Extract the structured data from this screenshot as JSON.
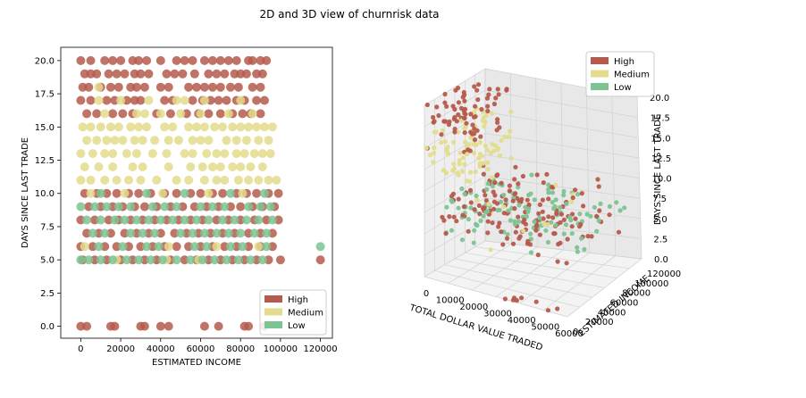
{
  "figure": {
    "suptitle": "2D and 3D view of churnrisk data"
  },
  "colors": {
    "High": "#b55a4c",
    "Medium": "#e3dc8c",
    "Low": "#7cc493"
  },
  "chart_data": [
    {
      "type": "scatter",
      "title": "",
      "xlabel": "ESTIMATED INCOME",
      "ylabel": "DAYS SINCE LAST TRADE",
      "xlim": [
        -10000,
        126000
      ],
      "ylim": [
        -0.9,
        21
      ],
      "xticks": [
        0,
        20000,
        40000,
        60000,
        80000,
        100000,
        120000
      ],
      "xtick_labels": [
        "0",
        "20000",
        "40000",
        "60000",
        "80000",
        "100000",
        "120000"
      ],
      "yticks": [
        0,
        2.5,
        5,
        7.5,
        10,
        12.5,
        15,
        17.5,
        20
      ],
      "ytick_labels": [
        "0.0",
        "2.5",
        "5.0",
        "7.5",
        "10.0",
        "12.5",
        "15.0",
        "17.5",
        "20.0"
      ],
      "grid": false,
      "legend": {
        "position": "bottom-right",
        "entries": [
          "High",
          "Medium",
          "Low"
        ]
      },
      "series": [
        {
          "name": "High",
          "rows": [
            {
              "y": 20,
              "x": [
                0,
                5000,
                12000,
                16000,
                20000,
                26000,
                29000,
                33000,
                40000,
                48000,
                52000,
                56000,
                62000,
                66000,
                70000,
                74000,
                78000,
                84000,
                86000,
                90000,
                93000
              ]
            },
            {
              "y": 19,
              "x": [
                2000,
                5000,
                8000,
                14000,
                18000,
                22000,
                27000,
                30000,
                34000,
                43000,
                47000,
                51000,
                57000,
                64000,
                68000,
                72000,
                77000,
                80000,
                83000,
                88000,
                91000
              ]
            },
            {
              "y": 18,
              "x": [
                1000,
                4000,
                10000,
                15000,
                19000,
                25000,
                28000,
                32000,
                40000,
                44000,
                54000,
                58000,
                62000,
                66000,
                70000,
                75000,
                79000,
                86000,
                90000
              ]
            },
            {
              "y": 17,
              "x": [
                0,
                5000,
                13000,
                17000,
                23000,
                27000,
                30000,
                42000,
                46000,
                56000,
                61000,
                65000,
                69000,
                73000,
                78000,
                82000,
                88000,
                92000
              ]
            },
            {
              "y": 16,
              "x": [
                3000,
                8000,
                16000,
                21000,
                26000,
                38000,
                45000,
                53000,
                59000,
                64000,
                70000,
                76000,
                81000,
                85000,
                90000
              ]
            },
            {
              "y": 10,
              "x": [
                2000,
                8000,
                13000,
                18000,
                24000,
                29000,
                35000,
                42000,
                48000,
                55000,
                60000,
                66000,
                71000,
                78000,
                83000,
                88000,
                94000,
                99000
              ]
            },
            {
              "y": 9,
              "x": [
                4000,
                10000,
                16000,
                21000,
                27000,
                32000,
                38000,
                45000,
                51000,
                57000,
                63000,
                69000,
                75000,
                80000,
                86000,
                91000,
                97000
              ]
            },
            {
              "y": 8,
              "x": [
                0,
                7000,
                14000,
                19000,
                25000,
                31000,
                37000,
                43000,
                49000,
                55000,
                61000,
                68000,
                74000,
                80000,
                87000,
                93000,
                99000
              ]
            },
            {
              "y": 7,
              "x": [
                3000,
                9000,
                15000,
                22000,
                28000,
                34000,
                40000,
                47000,
                53000,
                59000,
                65000,
                71000,
                77000,
                84000,
                90000,
                96000
              ]
            },
            {
              "y": 6,
              "x": [
                0,
                6000,
                12000,
                18000,
                24000,
                30000,
                36000,
                42000,
                48000,
                54000,
                60000,
                66000,
                72000,
                78000,
                84000,
                90000,
                96000
              ]
            },
            {
              "y": 5,
              "x": [
                1000,
                7000,
                13000,
                20000,
                26000,
                32000,
                38000,
                45000,
                52000,
                58000,
                64000,
                70000,
                76000,
                82000,
                88000,
                94000,
                100000,
                120000
              ]
            },
            {
              "y": 0,
              "x": [
                0,
                3000,
                15000,
                17000,
                30000,
                32000,
                40000,
                44000,
                62000,
                69000,
                82000,
                84000,
                92000
              ]
            }
          ]
        },
        {
          "name": "Medium",
          "rows": [
            {
              "y": 18,
              "x": [
                9000
              ]
            },
            {
              "y": 17,
              "x": [
                9000,
                20000,
                34000,
                48000,
                52000,
                62000,
                80000
              ]
            },
            {
              "y": 16,
              "x": [
                12000,
                28000,
                32000,
                40000,
                50000,
                60000,
                74000,
                86000
              ]
            },
            {
              "y": 15,
              "x": [
                1000,
                5000,
                10000,
                15000,
                19000,
                25000,
                29000,
                33000,
                42000,
                46000,
                54000,
                58000,
                62000,
                67000,
                71000,
                76000,
                80000,
                84000,
                88000,
                92000,
                96000
              ]
            },
            {
              "y": 14,
              "x": [
                3000,
                8000,
                13000,
                17000,
                21000,
                27000,
                31000,
                37000,
                44000,
                49000,
                56000,
                60000,
                64000,
                73000,
                78000,
                83000,
                89000,
                94000
              ]
            },
            {
              "y": 13,
              "x": [
                0,
                6000,
                12000,
                16000,
                23000,
                28000,
                36000,
                43000,
                52000,
                56000,
                63000,
                68000,
                72000,
                78000,
                82000,
                87000,
                91000,
                95000
              ]
            },
            {
              "y": 12,
              "x": [
                2000,
                9000,
                16000,
                26000,
                31000,
                44000,
                55000,
                61000,
                66000,
                70000,
                76000,
                80000,
                85000,
                91000
              ]
            },
            {
              "y": 11,
              "x": [
                0,
                5000,
                12000,
                18000,
                24000,
                30000,
                38000,
                48000,
                54000,
                62000,
                68000,
                72000,
                79000,
                84000,
                89000,
                94000,
                98000
              ]
            },
            {
              "y": 10,
              "x": [
                5000,
                22000,
                41000,
                64000,
                81000
              ]
            },
            {
              "y": 6,
              "x": [
                2000,
                44000,
                68000,
                89000
              ]
            },
            {
              "y": 5,
              "x": [
                18000,
                43000,
                59000
              ]
            }
          ]
        },
        {
          "name": "Low",
          "rows": [
            {
              "y": 10,
              "x": [
                10000,
                33000,
                52000,
                75000,
                92000
              ]
            },
            {
              "y": 9,
              "x": [
                0,
                7000,
                13000,
                19000,
                25000,
                36000,
                42000,
                48000,
                60000,
                66000,
                72000,
                84000,
                90000,
                95000
              ]
            },
            {
              "y": 8,
              "x": [
                3000,
                10000,
                17000,
                22000,
                28000,
                34000,
                40000,
                46000,
                52000,
                58000,
                64000,
                71000,
                77000,
                83000,
                89000,
                96000
              ]
            },
            {
              "y": 7,
              "x": [
                6000,
                12000,
                25000,
                31000,
                37000,
                50000,
                56000,
                62000,
                68000,
                74000,
                80000,
                87000,
                93000
              ]
            },
            {
              "y": 6,
              "x": [
                9000,
                21000,
                33000,
                39000,
                57000,
                63000,
                75000,
                81000,
                93000,
                120000
              ]
            },
            {
              "y": 5,
              "x": [
                0,
                4000,
                10000,
                16000,
                23000,
                29000,
                35000,
                41000,
                48000,
                55000,
                61000,
                67000,
                73000,
                79000,
                85000,
                91000
              ]
            }
          ]
        }
      ]
    },
    {
      "type": "scatter",
      "projection": "3d",
      "title": "",
      "xlabel": "TOTAL DOLLAR VALUE TRADED",
      "ylabel": "ESTIMATED INCOME",
      "zlabel": "DAYS SINCE LAST TRADE",
      "xlim": [
        0,
        60000
      ],
      "ylim": [
        0,
        120000
      ],
      "zlim": [
        0,
        20
      ],
      "xticks": [
        0,
        10000,
        20000,
        30000,
        40000,
        50000,
        60000
      ],
      "xtick_labels": [
        "0",
        "10000",
        "20000",
        "30000",
        "40000",
        "50000",
        "60000"
      ],
      "yticks": [
        0,
        20000,
        40000,
        60000,
        80000,
        100000,
        120000
      ],
      "ytick_labels": [
        "0",
        "20000",
        "40000",
        "60000",
        "80000",
        "100000",
        "120000"
      ],
      "zticks": [
        0,
        2.5,
        5,
        7.5,
        10,
        12.5,
        15,
        17.5,
        20
      ],
      "ztick_labels": [
        "0.0",
        "2.5",
        "5.0",
        "7.5",
        "10.0",
        "12.5",
        "15.0",
        "17.5",
        "20.0"
      ],
      "grid": true,
      "legend": {
        "position": "top-right",
        "entries": [
          "High",
          "Medium",
          "Low"
        ]
      },
      "series": [
        {
          "name": "High",
          "clusters": [
            {
              "x_range": [
                0,
                18000
              ],
              "y_range": [
                0,
                100000
              ],
              "z_range": [
                15,
                20
              ],
              "count": 75,
              "seed": 11
            },
            {
              "x_range": [
                5000,
                60000
              ],
              "y_range": [
                0,
                100000
              ],
              "z_range": [
                5,
                10
              ],
              "count": 150,
              "seed": 12
            },
            {
              "x_range": [
                30000,
                55000
              ],
              "y_range": [
                0,
                15000
              ],
              "z_range": [
                0,
                0
              ],
              "count": 8,
              "seed": 13
            }
          ]
        },
        {
          "name": "Medium",
          "clusters": [
            {
              "x_range": [
                0,
                18000
              ],
              "y_range": [
                0,
                100000
              ],
              "z_range": [
                11,
                17
              ],
              "count": 90,
              "seed": 21
            },
            {
              "x_range": [
                5000,
                50000
              ],
              "y_range": [
                0,
                100000
              ],
              "z_range": [
                5,
                10
              ],
              "count": 12,
              "seed": 22
            }
          ]
        },
        {
          "name": "Low",
          "clusters": [
            {
              "x_range": [
                5000,
                60000
              ],
              "y_range": [
                0,
                100000
              ],
              "z_range": [
                5,
                10
              ],
              "count": 115,
              "seed": 31
            }
          ]
        }
      ]
    }
  ]
}
